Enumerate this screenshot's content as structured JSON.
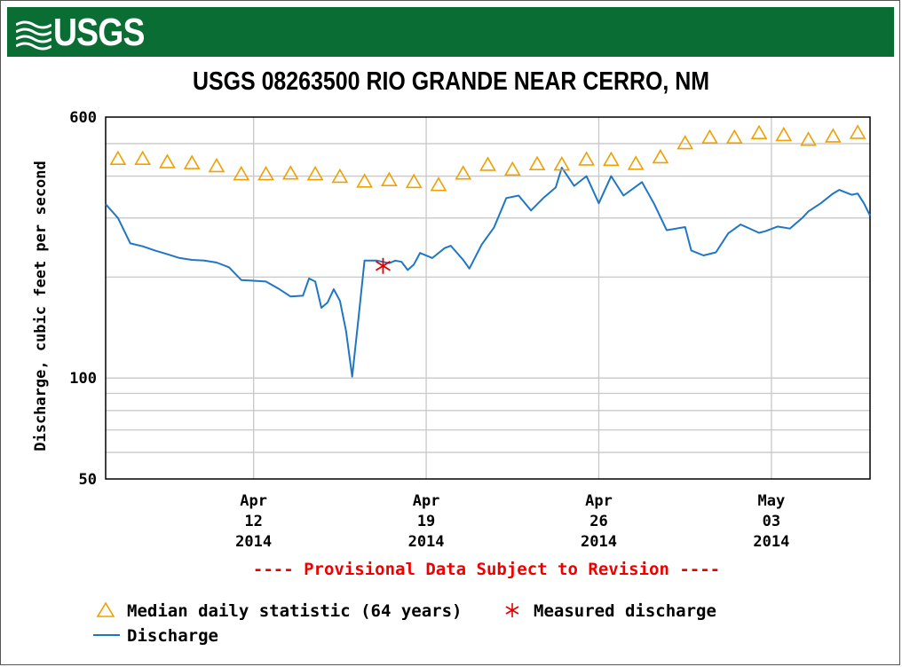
{
  "header": {
    "logo_text": "USGS"
  },
  "chart_data": {
    "type": "line",
    "title": "USGS 08263500 RIO GRANDE NEAR CERRO, NM",
    "ylabel": "Discharge, cubic feet per second",
    "yscale": "log",
    "ylim": [
      50,
      600
    ],
    "y_ticks": [
      {
        "value": 600,
        "label": "600"
      },
      {
        "value": 100,
        "label": "100"
      },
      {
        "value": 50,
        "label": "50"
      }
    ],
    "x_ticks": [
      {
        "date": "2014-04-12",
        "line1": "Apr",
        "line2": "12",
        "line3": "2014"
      },
      {
        "date": "2014-04-19",
        "line1": "Apr",
        "line2": "19",
        "line3": "2014"
      },
      {
        "date": "2014-04-26",
        "line1": "Apr",
        "line2": "26",
        "line3": "2014"
      },
      {
        "date": "2014-05-03",
        "line1": "May",
        "line2": "03",
        "line3": "2014"
      }
    ],
    "xlim": [
      "2014-04-06T00:00",
      "2014-05-07T00:00"
    ],
    "grid": true,
    "colors": {
      "discharge": "#1f77c4",
      "median": "#f0a000",
      "measured": "#e00000"
    },
    "series": [
      {
        "name": "Median daily statistic (64 years)",
        "marker": "triangle",
        "points": [
          [
            "2014-04-06T12:00",
            450
          ],
          [
            "2014-04-07T12:00",
            450
          ],
          [
            "2014-04-08T12:00",
            440
          ],
          [
            "2014-04-09T12:00",
            437
          ],
          [
            "2014-04-10T12:00",
            428
          ],
          [
            "2014-04-11T12:00",
            405
          ],
          [
            "2014-04-12T12:00",
            405
          ],
          [
            "2014-04-13T12:00",
            407
          ],
          [
            "2014-04-14T12:00",
            405
          ],
          [
            "2014-04-15T12:00",
            398
          ],
          [
            "2014-04-16T12:00",
            385
          ],
          [
            "2014-04-17T12:00",
            389
          ],
          [
            "2014-04-18T12:00",
            384
          ],
          [
            "2014-04-19T12:00",
            376
          ],
          [
            "2014-04-20T12:00",
            407
          ],
          [
            "2014-04-21T12:00",
            432
          ],
          [
            "2014-04-22T12:00",
            418
          ],
          [
            "2014-04-23T12:00",
            434
          ],
          [
            "2014-04-24T12:00",
            433
          ],
          [
            "2014-04-25T12:00",
            448
          ],
          [
            "2014-04-26T12:00",
            447
          ],
          [
            "2014-04-27T12:00",
            435
          ],
          [
            "2014-04-28T12:00",
            455
          ],
          [
            "2014-04-29T12:00",
            501
          ],
          [
            "2014-04-30T12:00",
            521
          ],
          [
            "2014-05-01T12:00",
            521
          ],
          [
            "2014-05-02T12:00",
            537
          ],
          [
            "2014-05-03T12:00",
            530
          ],
          [
            "2014-05-04T12:00",
            513
          ],
          [
            "2014-05-05T12:00",
            525
          ],
          [
            "2014-05-06T12:00",
            538
          ]
        ]
      },
      {
        "name": "Measured discharge",
        "marker": "asterisk",
        "points": [
          [
            "2014-04-17T06:00",
            216
          ]
        ]
      },
      {
        "name": "Discharge",
        "marker": "line",
        "points": [
          [
            "2014-04-06T00:00",
            330
          ],
          [
            "2014-04-06T12:00",
            300
          ],
          [
            "2014-04-07T00:00",
            252
          ],
          [
            "2014-04-07T12:00",
            247
          ],
          [
            "2014-04-08T00:00",
            240
          ],
          [
            "2014-04-08T12:00",
            234
          ],
          [
            "2014-04-09T00:00",
            228
          ],
          [
            "2014-04-09T12:00",
            225
          ],
          [
            "2014-04-10T00:00",
            224
          ],
          [
            "2014-04-10T12:00",
            221
          ],
          [
            "2014-04-11T00:00",
            214
          ],
          [
            "2014-04-11T12:00",
            196
          ],
          [
            "2014-04-12T00:00",
            195
          ],
          [
            "2014-04-12T12:00",
            194
          ],
          [
            "2014-04-13T00:00",
            185
          ],
          [
            "2014-04-13T12:00",
            175
          ],
          [
            "2014-04-14T00:00",
            176
          ],
          [
            "2014-04-14T06:00",
            198
          ],
          [
            "2014-04-14T12:00",
            194
          ],
          [
            "2014-04-14T18:00",
            162
          ],
          [
            "2014-04-15T00:00",
            168
          ],
          [
            "2014-04-15T06:00",
            184
          ],
          [
            "2014-04-15T12:00",
            170
          ],
          [
            "2014-04-15T18:00",
            138
          ],
          [
            "2014-04-16T00:00",
            101
          ],
          [
            "2014-04-16T06:00",
            150
          ],
          [
            "2014-04-16T12:00",
            224
          ],
          [
            "2014-04-17T00:00",
            224
          ],
          [
            "2014-04-17T12:00",
            220
          ],
          [
            "2014-04-17T18:00",
            224
          ],
          [
            "2014-04-18T00:00",
            222
          ],
          [
            "2014-04-18T06:00",
            210
          ],
          [
            "2014-04-18T12:00",
            218
          ],
          [
            "2014-04-18T18:00",
            236
          ],
          [
            "2014-04-19T06:00",
            228
          ],
          [
            "2014-04-19T18:00",
            244
          ],
          [
            "2014-04-20T00:00",
            248
          ],
          [
            "2014-04-20T12:00",
            225
          ],
          [
            "2014-04-20T18:00",
            212
          ],
          [
            "2014-04-21T06:00",
            250
          ],
          [
            "2014-04-21T18:00",
            281
          ],
          [
            "2014-04-22T06:00",
            344
          ],
          [
            "2014-04-22T18:00",
            350
          ],
          [
            "2014-04-23T06:00",
            316
          ],
          [
            "2014-04-23T18:00",
            344
          ],
          [
            "2014-04-24T06:00",
            370
          ],
          [
            "2014-04-24T12:00",
            424
          ],
          [
            "2014-04-25T00:00",
            374
          ],
          [
            "2014-04-25T12:00",
            400
          ],
          [
            "2014-04-26T00:00",
            332
          ],
          [
            "2014-04-26T12:00",
            400
          ],
          [
            "2014-04-27T00:00",
            350
          ],
          [
            "2014-04-27T18:00",
            384
          ],
          [
            "2014-04-28T06:00",
            330
          ],
          [
            "2014-04-28T18:00",
            276
          ],
          [
            "2014-04-29T12:00",
            282
          ],
          [
            "2014-04-29T18:00",
            240
          ],
          [
            "2014-04-30T06:00",
            232
          ],
          [
            "2014-04-30T18:00",
            237
          ],
          [
            "2014-05-01T06:00",
            270
          ],
          [
            "2014-05-01T18:00",
            287
          ],
          [
            "2014-05-02T12:00",
            271
          ],
          [
            "2014-05-02T18:00",
            274
          ],
          [
            "2014-05-03T06:00",
            283
          ],
          [
            "2014-05-03T18:00",
            279
          ],
          [
            "2014-05-04T06:00",
            300
          ],
          [
            "2014-05-04T12:00",
            314
          ],
          [
            "2014-05-05T00:00",
            332
          ],
          [
            "2014-05-05T12:00",
            355
          ],
          [
            "2014-05-05T18:00",
            364
          ],
          [
            "2014-05-06T06:00",
            352
          ],
          [
            "2014-05-06T12:00",
            355
          ],
          [
            "2014-05-06T18:00",
            332
          ],
          [
            "2014-05-07T00:00",
            305
          ]
        ]
      }
    ]
  },
  "notes": {
    "provisional": "---- Provisional Data Subject to Revision ----"
  },
  "legend": {
    "median_label": "Median daily statistic (64 years)",
    "measured_label": "Measured discharge",
    "discharge_label": "Discharge"
  }
}
